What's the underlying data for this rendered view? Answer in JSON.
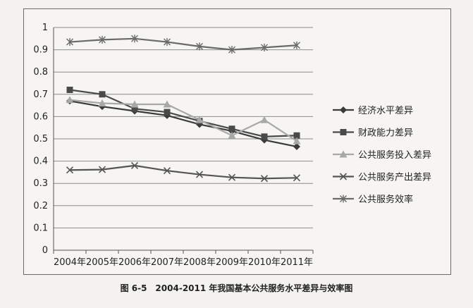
{
  "caption": "图 6-5　2004-2011 年我国基本公共服务水平差异与效率图",
  "chart_data": {
    "type": "line",
    "categories": [
      "2004年",
      "2005年",
      "2006年",
      "2007年",
      "2008年",
      "2009年",
      "2010年",
      "2011年"
    ],
    "ylim": [
      0,
      1
    ],
    "yticks": [
      "0",
      "0.1",
      "0.2",
      "0.3",
      "0.4",
      "0.5",
      "0.6",
      "0.7",
      "0.8",
      "0.9",
      "1"
    ],
    "grid": "horizontal",
    "legend_position": "right",
    "series": [
      {
        "name": "经济水平差异",
        "marker": "diamond",
        "color": "#3b3b3b",
        "values": [
          0.67,
          0.645,
          0.625,
          0.605,
          0.565,
          0.535,
          0.495,
          0.465
        ]
      },
      {
        "name": "财政能力差异",
        "marker": "square",
        "color": "#4a4a4a",
        "values": [
          0.72,
          0.7,
          0.635,
          0.62,
          0.58,
          0.545,
          0.51,
          0.515
        ]
      },
      {
        "name": "公共服务投入差异",
        "marker": "triangle",
        "color": "#a8a8a8",
        "values": [
          0.675,
          0.66,
          0.655,
          0.655,
          0.585,
          0.515,
          0.585,
          0.49
        ]
      },
      {
        "name": "公共服务产出差异",
        "marker": "x",
        "color": "#555555",
        "values": [
          0.36,
          0.362,
          0.38,
          0.357,
          0.34,
          0.327,
          0.322,
          0.325
        ]
      },
      {
        "name": "公共服务效率",
        "marker": "asterisk",
        "color": "#6a6a6a",
        "values": [
          0.935,
          0.945,
          0.95,
          0.935,
          0.915,
          0.9,
          0.91,
          0.92
        ]
      }
    ]
  }
}
